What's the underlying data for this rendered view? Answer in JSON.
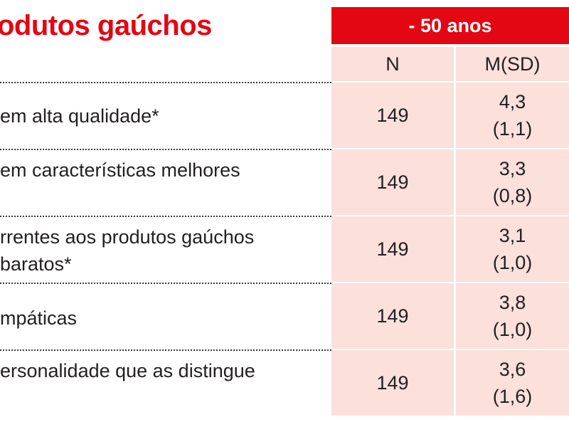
{
  "title": "odutos gaúchos",
  "group_header": "- 50 anos",
  "columns": {
    "n": "N",
    "m": "M(SD)"
  },
  "rows": [
    {
      "label_lines": [
        "em alta qualidade*",
        ""
      ],
      "n": "149",
      "mean": "4,3",
      "sd": "(1,1)"
    },
    {
      "label_lines": [
        "em características melhores",
        ""
      ],
      "n": "149",
      "mean": "3,3",
      "sd": "(0,8)"
    },
    {
      "label_lines": [
        "rrentes aos produtos gaúchos",
        "baratos*"
      ],
      "n": "149",
      "mean": "3,1",
      "sd": "(1,0)"
    },
    {
      "label_lines": [
        "mpáticas",
        ""
      ],
      "n": "149",
      "mean": "3,8",
      "sd": "(1,0)"
    },
    {
      "label_lines": [
        "ersonalidade que as distingue",
        ""
      ],
      "n": "149",
      "mean": "3,6",
      "sd": "(1,6)"
    }
  ],
  "colors": {
    "accent": "#e30613",
    "cell_bg": "#fbe0dc",
    "text": "#231f20"
  }
}
